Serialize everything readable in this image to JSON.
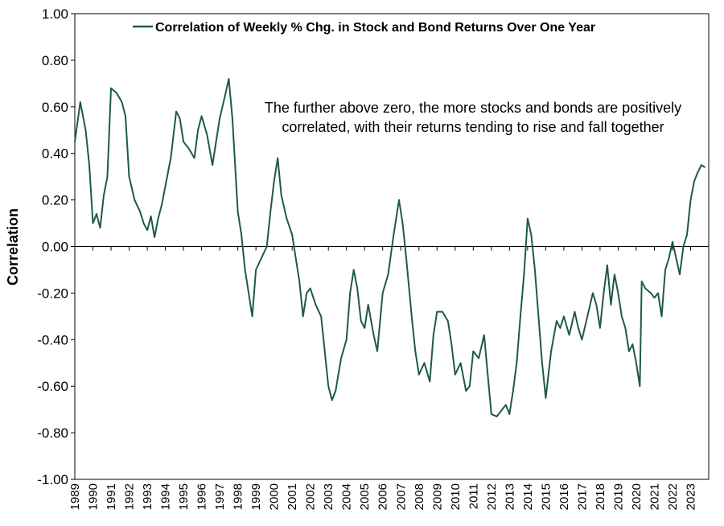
{
  "chart_data": {
    "type": "line",
    "series": [
      {
        "name": "Correlation of Weekly % Chg. in Stock and Bond Returns Over One Year",
        "color": "#1e5a46",
        "points": [
          [
            1989.0,
            0.45
          ],
          [
            1989.3,
            0.62
          ],
          [
            1989.6,
            0.5
          ],
          [
            1989.8,
            0.35
          ],
          [
            1990.0,
            0.1
          ],
          [
            1990.2,
            0.14
          ],
          [
            1990.4,
            0.08
          ],
          [
            1990.6,
            0.22
          ],
          [
            1990.8,
            0.3
          ],
          [
            1991.0,
            0.68
          ],
          [
            1991.3,
            0.66
          ],
          [
            1991.6,
            0.62
          ],
          [
            1991.8,
            0.56
          ],
          [
            1992.0,
            0.3
          ],
          [
            1992.3,
            0.2
          ],
          [
            1992.6,
            0.15
          ],
          [
            1992.8,
            0.1
          ],
          [
            1993.0,
            0.07
          ],
          [
            1993.2,
            0.13
          ],
          [
            1993.4,
            0.04
          ],
          [
            1993.6,
            0.12
          ],
          [
            1993.8,
            0.18
          ],
          [
            1994.0,
            0.26
          ],
          [
            1994.3,
            0.38
          ],
          [
            1994.6,
            0.58
          ],
          [
            1994.8,
            0.55
          ],
          [
            1995.0,
            0.45
          ],
          [
            1995.3,
            0.42
          ],
          [
            1995.6,
            0.38
          ],
          [
            1995.8,
            0.5
          ],
          [
            1996.0,
            0.56
          ],
          [
            1996.3,
            0.48
          ],
          [
            1996.6,
            0.35
          ],
          [
            1996.8,
            0.45
          ],
          [
            1997.0,
            0.55
          ],
          [
            1997.3,
            0.65
          ],
          [
            1997.5,
            0.72
          ],
          [
            1997.7,
            0.55
          ],
          [
            1998.0,
            0.15
          ],
          [
            1998.2,
            0.05
          ],
          [
            1998.4,
            -0.1
          ],
          [
            1998.6,
            -0.2
          ],
          [
            1998.8,
            -0.3
          ],
          [
            1999.0,
            -0.1
          ],
          [
            1999.3,
            -0.05
          ],
          [
            1999.6,
            0.0
          ],
          [
            1999.8,
            0.15
          ],
          [
            2000.0,
            0.28
          ],
          [
            2000.2,
            0.38
          ],
          [
            2000.4,
            0.22
          ],
          [
            2000.7,
            0.12
          ],
          [
            2001.0,
            0.05
          ],
          [
            2001.2,
            -0.05
          ],
          [
            2001.4,
            -0.15
          ],
          [
            2001.6,
            -0.3
          ],
          [
            2001.8,
            -0.2
          ],
          [
            2002.0,
            -0.18
          ],
          [
            2002.3,
            -0.25
          ],
          [
            2002.6,
            -0.3
          ],
          [
            2002.8,
            -0.45
          ],
          [
            2003.0,
            -0.6
          ],
          [
            2003.2,
            -0.66
          ],
          [
            2003.4,
            -0.62
          ],
          [
            2003.7,
            -0.48
          ],
          [
            2004.0,
            -0.4
          ],
          [
            2004.2,
            -0.2
          ],
          [
            2004.4,
            -0.1
          ],
          [
            2004.6,
            -0.18
          ],
          [
            2004.8,
            -0.32
          ],
          [
            2005.0,
            -0.35
          ],
          [
            2005.2,
            -0.25
          ],
          [
            2005.5,
            -0.38
          ],
          [
            2005.7,
            -0.45
          ],
          [
            2006.0,
            -0.2
          ],
          [
            2006.3,
            -0.12
          ],
          [
            2006.6,
            0.05
          ],
          [
            2006.9,
            0.2
          ],
          [
            2007.1,
            0.1
          ],
          [
            2007.3,
            -0.05
          ],
          [
            2007.6,
            -0.3
          ],
          [
            2007.8,
            -0.45
          ],
          [
            2008.0,
            -0.55
          ],
          [
            2008.3,
            -0.5
          ],
          [
            2008.6,
            -0.58
          ],
          [
            2008.8,
            -0.38
          ],
          [
            2009.0,
            -0.28
          ],
          [
            2009.3,
            -0.28
          ],
          [
            2009.6,
            -0.32
          ],
          [
            2009.8,
            -0.42
          ],
          [
            2010.0,
            -0.55
          ],
          [
            2010.3,
            -0.5
          ],
          [
            2010.6,
            -0.62
          ],
          [
            2010.8,
            -0.6
          ],
          [
            2011.0,
            -0.45
          ],
          [
            2011.3,
            -0.48
          ],
          [
            2011.6,
            -0.38
          ],
          [
            2011.8,
            -0.55
          ],
          [
            2012.0,
            -0.72
          ],
          [
            2012.3,
            -0.73
          ],
          [
            2012.6,
            -0.7
          ],
          [
            2012.8,
            -0.68
          ],
          [
            2013.0,
            -0.72
          ],
          [
            2013.2,
            -0.62
          ],
          [
            2013.4,
            -0.5
          ],
          [
            2013.6,
            -0.3
          ],
          [
            2013.8,
            -0.12
          ],
          [
            2014.0,
            0.12
          ],
          [
            2014.2,
            0.05
          ],
          [
            2014.4,
            -0.1
          ],
          [
            2014.6,
            -0.3
          ],
          [
            2014.8,
            -0.5
          ],
          [
            2015.0,
            -0.65
          ],
          [
            2015.3,
            -0.45
          ],
          [
            2015.6,
            -0.32
          ],
          [
            2015.8,
            -0.35
          ],
          [
            2016.0,
            -0.3
          ],
          [
            2016.3,
            -0.38
          ],
          [
            2016.6,
            -0.28
          ],
          [
            2016.8,
            -0.35
          ],
          [
            2017.0,
            -0.4
          ],
          [
            2017.3,
            -0.3
          ],
          [
            2017.6,
            -0.2
          ],
          [
            2017.8,
            -0.25
          ],
          [
            2018.0,
            -0.35
          ],
          [
            2018.2,
            -0.2
          ],
          [
            2018.4,
            -0.08
          ],
          [
            2018.6,
            -0.25
          ],
          [
            2018.8,
            -0.12
          ],
          [
            2019.0,
            -0.2
          ],
          [
            2019.2,
            -0.3
          ],
          [
            2019.4,
            -0.35
          ],
          [
            2019.6,
            -0.45
          ],
          [
            2019.8,
            -0.42
          ],
          [
            2020.0,
            -0.5
          ],
          [
            2020.2,
            -0.6
          ],
          [
            2020.3,
            -0.15
          ],
          [
            2020.5,
            -0.18
          ],
          [
            2020.8,
            -0.2
          ],
          [
            2021.0,
            -0.22
          ],
          [
            2021.2,
            -0.2
          ],
          [
            2021.4,
            -0.3
          ],
          [
            2021.6,
            -0.1
          ],
          [
            2021.8,
            -0.05
          ],
          [
            2022.0,
            0.02
          ],
          [
            2022.2,
            -0.05
          ],
          [
            2022.4,
            -0.12
          ],
          [
            2022.6,
            0.0
          ],
          [
            2022.8,
            0.05
          ],
          [
            2023.0,
            0.2
          ],
          [
            2023.2,
            0.28
          ],
          [
            2023.4,
            0.32
          ],
          [
            2023.6,
            0.35
          ],
          [
            2023.8,
            0.34
          ]
        ]
      }
    ],
    "ylabel": "Correlation",
    "ylim": [
      -1.0,
      1.0
    ],
    "xlim": [
      1989,
      2024
    ],
    "y_ticks": [
      "1.00",
      "0.80",
      "0.60",
      "0.40",
      "0.20",
      "0.00",
      "-0.20",
      "-0.40",
      "-0.60",
      "-0.80",
      "-1.00"
    ],
    "x_ticks": [
      "1989",
      "1990",
      "1991",
      "1992",
      "1993",
      "1994",
      "1995",
      "1996",
      "1997",
      "1998",
      "1999",
      "2000",
      "2001",
      "2002",
      "2003",
      "2004",
      "2005",
      "2006",
      "2007",
      "2008",
      "2009",
      "2010",
      "2011",
      "2012",
      "2013",
      "2014",
      "2015",
      "2016",
      "2017",
      "2018",
      "2019",
      "2020",
      "2021",
      "2022",
      "2023"
    ],
    "annotation": {
      "line1": "The further above zero, the more stocks and bonds are positively",
      "line2": "correlated, with their returns tending to rise and fall together"
    },
    "legend": {
      "placement": "top-center"
    },
    "grid": false
  }
}
